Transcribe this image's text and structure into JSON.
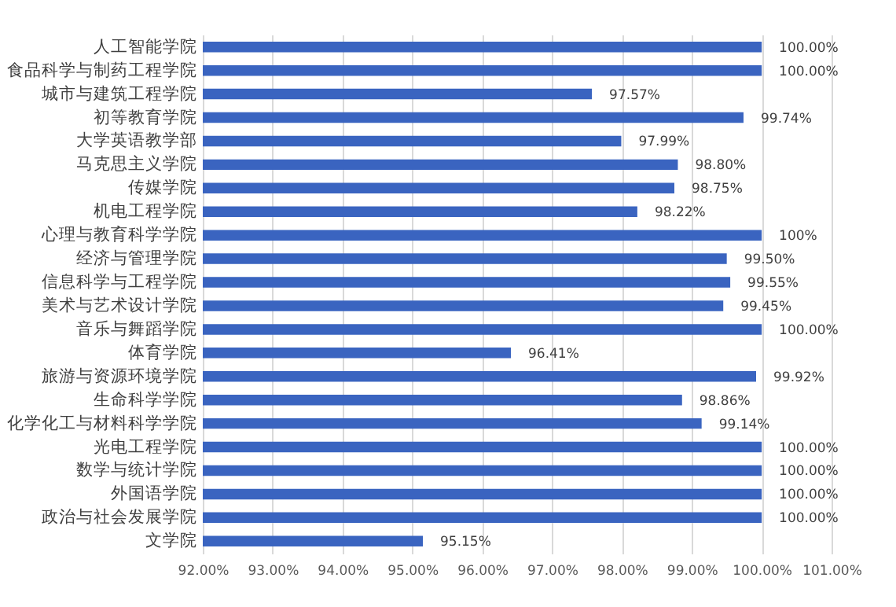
{
  "chart_data": {
    "type": "bar",
    "orientation": "horizontal",
    "categories": [
      "人工智能学院",
      "食品科学与制药工程学院",
      "城市与建筑工程学院",
      "初等教育学院",
      "大学英语教学部",
      "马克思主义学院",
      "传媒学院",
      "机电工程学院",
      "心理与教育科学学院",
      "经济与管理学院",
      "信息科学与工程学院",
      "美术与艺术设计学院",
      "音乐与舞蹈学院",
      "体育学院",
      "旅游与资源环境学院",
      "生命科学学院",
      "化学化工与材料科学学院",
      "光电工程学院",
      "数学与统计学院",
      "外国语学院",
      "政治与社会发展学院",
      "文学院"
    ],
    "values": [
      100,
      100,
      97.57,
      99.74,
      97.99,
      98.8,
      98.75,
      98.22,
      100,
      99.5,
      99.55,
      99.45,
      100,
      96.41,
      99.92,
      98.86,
      99.14,
      100,
      100,
      100,
      100,
      95.15
    ],
    "value_labels": [
      "100.00%",
      "100.00%",
      "97.57%",
      "99.74%",
      "97.99%",
      "98.80%",
      "98.75%",
      "98.22%",
      "100%",
      "99.50%",
      "99.55%",
      "99.45%",
      "100.00%",
      "96.41%",
      "99.92%",
      "98.86%",
      "99.14%",
      "100.00%",
      "100.00%",
      "100.00%",
      "100.00%",
      "95.15%"
    ],
    "color": "#3a64c0",
    "xlim": [
      92,
      101
    ],
    "xticks": [
      {
        "value": 92,
        "label": "92.00%"
      },
      {
        "value": 93,
        "label": "93.00%"
      },
      {
        "value": 94,
        "label": "94.00%"
      },
      {
        "value": 95,
        "label": "95.00%"
      },
      {
        "value": 96,
        "label": "96.00%"
      },
      {
        "value": 97,
        "label": "97.00%"
      },
      {
        "value": 98,
        "label": "98.00%"
      },
      {
        "value": 99,
        "label": "99.00%"
      },
      {
        "value": 100,
        "label": "100.00%"
      },
      {
        "value": 101,
        "label": "101.00%"
      }
    ],
    "grid": "x"
  }
}
